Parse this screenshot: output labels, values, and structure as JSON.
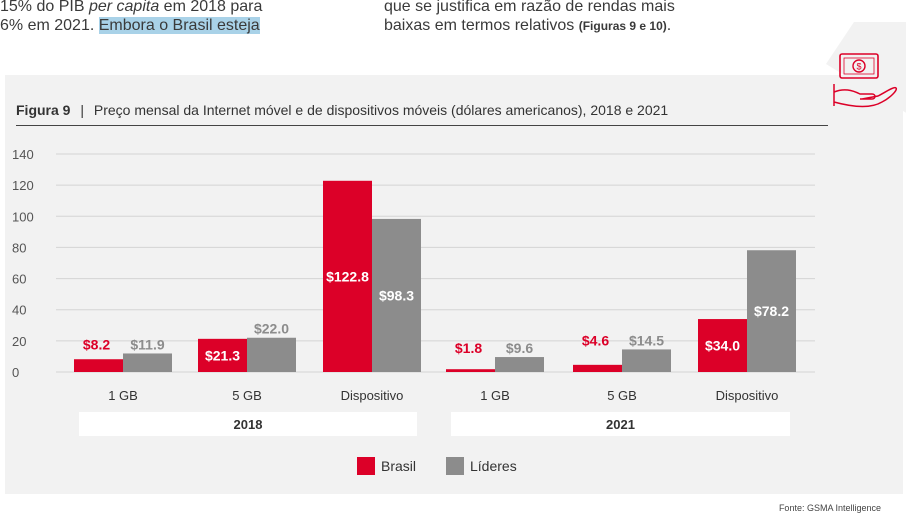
{
  "intro": {
    "left_line1_a": "15% do PIB ",
    "left_line1_em": "per capita",
    "left_line1_b": " em 2018 para",
    "left_line2_a": "6% em 2021. ",
    "left_line2_hl": "Embora o Brasil esteja",
    "right_line1": "que se justifica em razão de rendas mais",
    "right_line2": "baixas em termos relativos ",
    "right_ref": "(Figuras 9 e 10)",
    "right_end": "."
  },
  "figure": {
    "label": "Figura 9",
    "separator": "|",
    "title": "Preço mensal da Internet móvel e de dispositivos móveis (dólares americanos), 2018 e 2021"
  },
  "source": "Fonte: GSMA Intelligence",
  "icon": "money-hand-icon",
  "colors": {
    "brasil": "#dc0028",
    "lideres": "#8c8c8c",
    "grid": "#d4d4d4",
    "red_label": "#dc0028",
    "gray_label": "#8c8c8c"
  },
  "chart_data": {
    "type": "bar",
    "title": "Preço mensal da Internet móvel e de dispositivos móveis (dólares americanos), 2018 e 2021",
    "categories": [
      "1 GB",
      "5 GB",
      "Dispositivo",
      "1 GB",
      "5 GB",
      "Dispositivo"
    ],
    "groups": [
      {
        "label": "2018",
        "categories": [
          0,
          1,
          2
        ]
      },
      {
        "label": "2021",
        "categories": [
          3,
          4,
          5
        ]
      }
    ],
    "series": [
      {
        "name": "Brasil",
        "values": [
          8.2,
          21.3,
          122.8,
          1.8,
          4.6,
          34.0
        ],
        "labels": [
          "$8.2",
          "$21.3",
          "$122.8",
          "$1.8",
          "$4.6",
          "$34.0"
        ]
      },
      {
        "name": "Líderes",
        "values": [
          11.9,
          22.0,
          98.3,
          9.6,
          14.5,
          78.2
        ],
        "labels": [
          "$11.9",
          "$22.0",
          "$98.3",
          "$9.6",
          "$14.5",
          "$78.2"
        ]
      }
    ],
    "yticks": [
      "0",
      "20",
      "40",
      "60",
      "80",
      "100",
      "120",
      "140"
    ],
    "ylim": [
      0,
      140
    ],
    "xlabel": "",
    "ylabel": "",
    "legend": [
      "Brasil",
      "Líderes"
    ],
    "legend_position": "bottom-center",
    "grid": true
  }
}
